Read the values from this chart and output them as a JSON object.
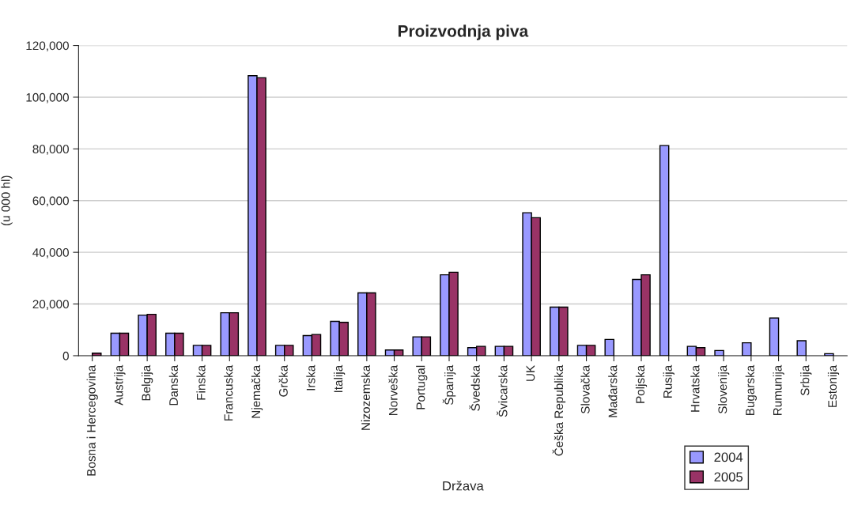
{
  "chart_data": {
    "type": "bar",
    "title": "Proizvodnja piva",
    "xlabel": "Država",
    "ylabel": "(u 000 hl)",
    "categories": [
      "Bosna i Hercegovina",
      "Austrija",
      "Belgija",
      "Danska",
      "Finska",
      "Francuska",
      "Njemačka",
      "Grčka",
      "Irska",
      "Italija",
      "Nizozemska",
      "Norveška",
      "Portugal",
      "Španija",
      "Švedska",
      "Švicarska",
      "UK",
      "Češka Republika",
      "Slovačka",
      "Mađarska",
      "Poljska",
      "Rusija",
      "Hrvatska",
      "Slovenija",
      "Bugarska",
      "Rumunija",
      "Srbija",
      "Estonija"
    ],
    "series": [
      {
        "name": "2004",
        "color": "#9999ff",
        "values": [
          null,
          8700,
          15700,
          8700,
          4000,
          16600,
          108300,
          4000,
          7800,
          13300,
          24300,
          2200,
          7300,
          31300,
          3100,
          3600,
          55300,
          18800,
          4000,
          6300,
          29500,
          81300,
          3600,
          2000,
          5000,
          14600,
          5800,
          800
        ]
      },
      {
        "name": "2005",
        "color": "#993366",
        "values": [
          1000,
          8700,
          16000,
          8700,
          4000,
          16600,
          107500,
          4000,
          8200,
          12900,
          24300,
          2200,
          7300,
          32300,
          3600,
          3600,
          53400,
          18800,
          4000,
          null,
          31300,
          null,
          3100,
          null,
          null,
          null,
          null,
          null
        ]
      }
    ],
    "ylim": [
      0,
      120000
    ],
    "yticks": [
      {
        "value": 0,
        "label": "0"
      },
      {
        "value": 20000,
        "label": "20,000"
      },
      {
        "value": 40000,
        "label": "40,000"
      },
      {
        "value": 60000,
        "label": "60,000"
      },
      {
        "value": 80000,
        "label": "80,000"
      },
      {
        "value": 100000,
        "label": "100,000"
      },
      {
        "value": 120000,
        "label": "120,000"
      }
    ],
    "grid": "y",
    "legend": "bottom right"
  }
}
